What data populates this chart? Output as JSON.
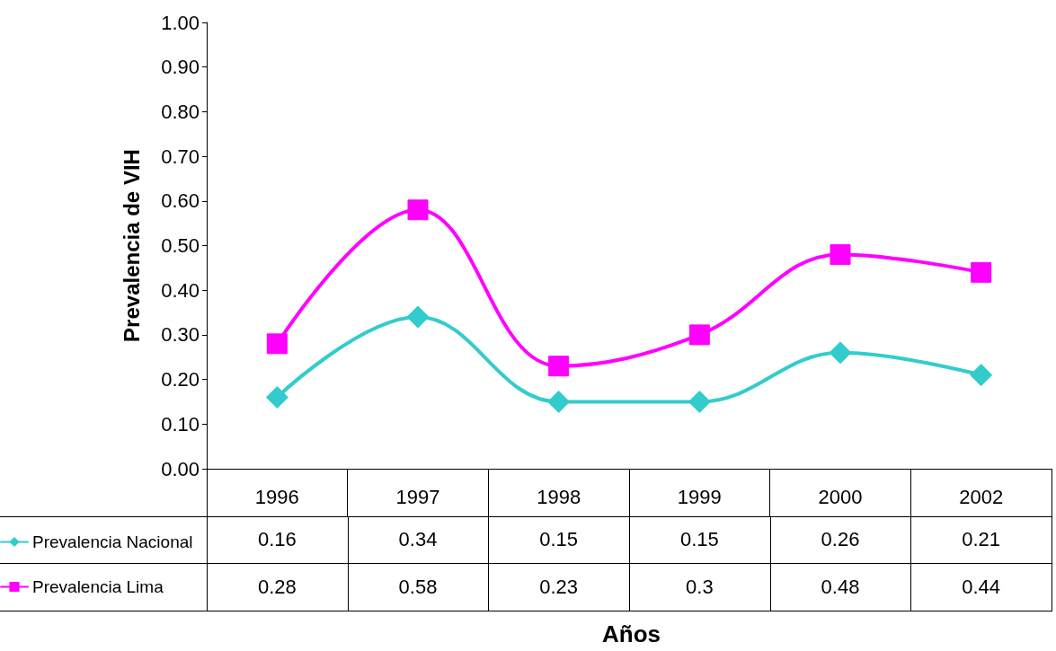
{
  "chart_data": {
    "type": "line",
    "ylabel": "Prevalencia de VIH",
    "annotations": [
      "Años"
    ],
    "categories": [
      "1996",
      "1997",
      "1998",
      "1999",
      "2000",
      "2002"
    ],
    "series": [
      {
        "name": "Prevalencia Nacional",
        "color": "#33cccc",
        "marker": "diamond",
        "values": [
          0.16,
          0.34,
          0.15,
          0.15,
          0.26,
          0.21
        ]
      },
      {
        "name": "Prevalencia Lima",
        "color": "#ff00ff",
        "marker": "square",
        "values": [
          0.28,
          0.58,
          0.23,
          0.3,
          0.48,
          0.44
        ]
      }
    ],
    "ylim": [
      0,
      1
    ],
    "yticks": [
      {
        "value": 0,
        "label": "0.00"
      },
      {
        "value": 0.1,
        "label": "0.10"
      },
      {
        "value": 0.2,
        "label": "0.20"
      },
      {
        "value": 0.3,
        "label": "0.30"
      },
      {
        "value": 0.4,
        "label": "0.40"
      },
      {
        "value": 0.5,
        "label": "0.50"
      },
      {
        "value": 0.6,
        "label": "0.60"
      },
      {
        "value": 0.7,
        "label": "0.70"
      },
      {
        "value": 0.8,
        "label": "0.80"
      },
      {
        "value": 0.9,
        "label": "0.90"
      },
      {
        "value": 1,
        "label": "1.00"
      }
    ],
    "grid": false,
    "legend": "bottom left",
    "data_labels": true
  }
}
